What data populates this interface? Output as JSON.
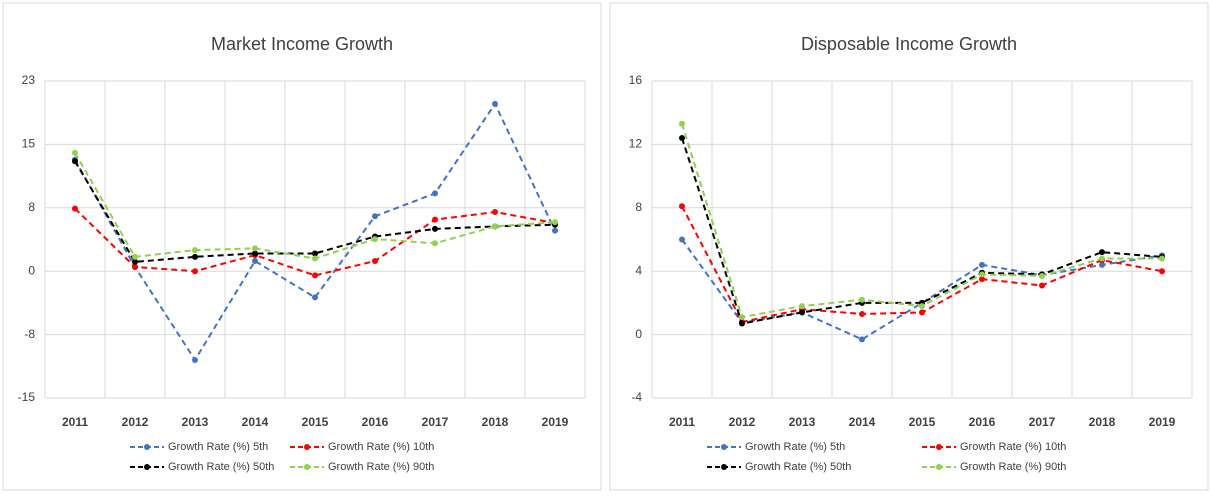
{
  "chart_data": [
    {
      "type": "line",
      "title": "Market Income Growth",
      "categories": [
        "2011",
        "2012",
        "2013",
        "2014",
        "2015",
        "2016",
        "2017",
        "2018",
        "2019"
      ],
      "ylim": [
        -15,
        22.5
      ],
      "yticks": [
        -15,
        {
          "value": -7.5,
          "label": "-8"
        },
        0,
        {
          "value": 7.5,
          "label": "8"
        },
        15,
        {
          "value": 22.5,
          "label": "23"
        }
      ],
      "grid": true,
      "series": [
        {
          "name": "Growth Rate (%) 5th",
          "color": "#4472c4",
          "values": [
            13.2,
            0.5,
            -10.5,
            1.2,
            -3.1,
            6.5,
            9.2,
            19.8,
            4.8
          ]
        },
        {
          "name": "Growth Rate (%) 10th",
          "color": "#ff0000",
          "values": [
            7.4,
            0.5,
            0,
            1.9,
            -0.5,
            1.2,
            6.1,
            7.0,
            5.7
          ]
        },
        {
          "name": "Growth Rate (%) 50th",
          "color": "#000000",
          "values": [
            13.0,
            1.1,
            1.7,
            2.1,
            2.1,
            4.1,
            5.0,
            5.3,
            5.5
          ]
        },
        {
          "name": "Growth Rate (%) 90th",
          "color": "#92d050",
          "values": [
            14.0,
            1.7,
            2.5,
            2.7,
            1.5,
            3.8,
            3.3,
            5.3,
            5.8
          ]
        }
      ]
    },
    {
      "type": "line",
      "title": "Disposable Income Growth",
      "categories": [
        "2011",
        "2012",
        "2013",
        "2014",
        "2015",
        "2016",
        "2017",
        "2018",
        "2019"
      ],
      "ylim": [
        -4,
        16
      ],
      "yticks": [
        -4,
        0,
        4,
        8,
        12,
        16
      ],
      "grid": true,
      "series": [
        {
          "name": "Growth Rate (%) 5th",
          "color": "#4472c4",
          "values": [
            6.0,
            0.75,
            1.4,
            -0.3,
            2.0,
            4.4,
            3.75,
            4.4,
            5.0
          ]
        },
        {
          "name": "Growth Rate (%) 10th",
          "color": "#ff0000",
          "values": [
            8.1,
            0.8,
            1.6,
            1.3,
            1.4,
            3.5,
            3.1,
            4.7,
            4.0
          ]
        },
        {
          "name": "Growth Rate (%) 50th",
          "color": "#000000",
          "values": [
            12.4,
            0.7,
            1.4,
            2.0,
            2.0,
            3.9,
            3.8,
            5.2,
            4.9
          ]
        },
        {
          "name": "Growth Rate (%) 90th",
          "color": "#92d050",
          "values": [
            13.3,
            1.1,
            1.8,
            2.2,
            1.8,
            3.8,
            3.7,
            4.8,
            4.8
          ]
        }
      ]
    }
  ]
}
